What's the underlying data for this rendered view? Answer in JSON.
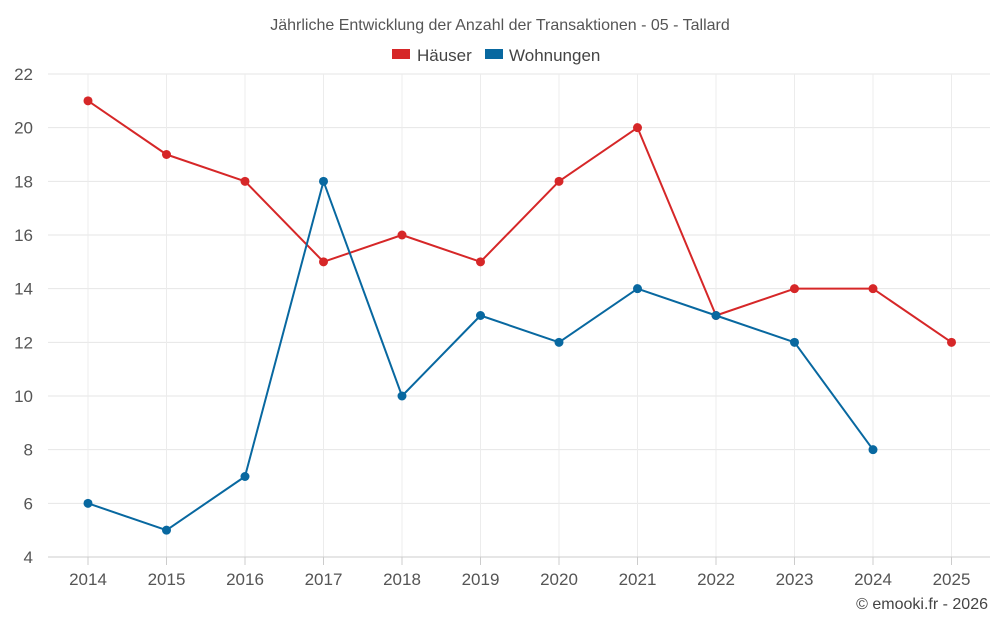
{
  "chart_data": {
    "type": "line",
    "title": "Jährliche Entwicklung der Anzahl der Transaktionen - 05 - Tallard",
    "categories": [
      "2014",
      "2015",
      "2016",
      "2017",
      "2018",
      "2019",
      "2020",
      "2021",
      "2022",
      "2023",
      "2024",
      "2025"
    ],
    "series": [
      {
        "name": "Häuser",
        "color": "#d62728",
        "values": [
          21,
          19,
          18,
          15,
          16,
          15,
          18,
          20,
          13,
          14,
          14,
          12
        ]
      },
      {
        "name": "Wohnungen",
        "color": "#0868a0",
        "values": [
          6,
          5,
          7,
          18,
          10,
          13,
          12,
          14,
          13,
          12,
          8,
          null
        ]
      }
    ],
    "ylim": [
      4,
      22
    ],
    "yticks": [
      4,
      6,
      8,
      10,
      12,
      14,
      16,
      18,
      20,
      22
    ],
    "xlabel": "",
    "ylabel": "",
    "grid": true,
    "legend": "top-center"
  },
  "credit": "© emooki.fr - 2026"
}
